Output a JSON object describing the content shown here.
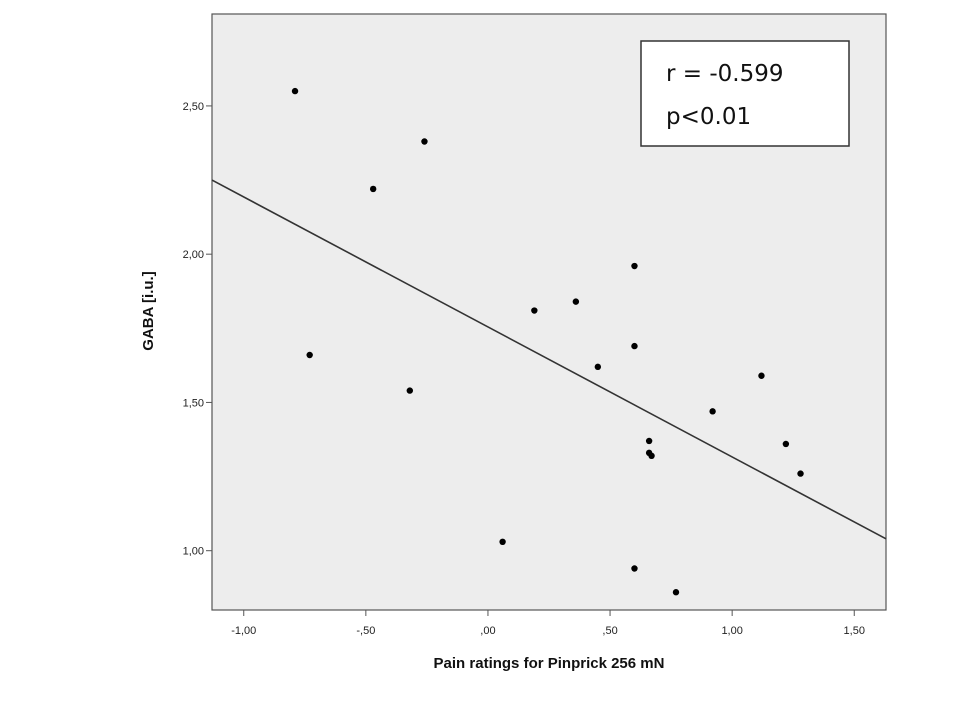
{
  "chart_data": {
    "type": "scatter",
    "title": "",
    "xlabel": "Pain ratings for Pinprick 256 mN",
    "ylabel": "GABA [i.u.]",
    "xlim": [
      -1.13,
      1.63
    ],
    "ylim": [
      0.8,
      2.81
    ],
    "xticks": [
      -1.0,
      -0.5,
      0.0,
      0.5,
      1.0,
      1.5
    ],
    "xtick_labels": [
      "-1,00",
      "-,50",
      ",00",
      ",50",
      "1,00",
      "1,50"
    ],
    "yticks": [
      1.0,
      1.5,
      2.0,
      2.5
    ],
    "ytick_labels": [
      "1,00",
      "1,50",
      "2,00",
      "2,50"
    ],
    "grid": false,
    "background": "#ededed",
    "points": [
      {
        "x": -0.79,
        "y": 2.55
      },
      {
        "x": -0.73,
        "y": 1.66
      },
      {
        "x": -0.47,
        "y": 2.22
      },
      {
        "x": -0.32,
        "y": 1.54
      },
      {
        "x": -0.26,
        "y": 2.38
      },
      {
        "x": 0.06,
        "y": 1.03
      },
      {
        "x": 0.19,
        "y": 1.81
      },
      {
        "x": 0.36,
        "y": 1.84
      },
      {
        "x": 0.45,
        "y": 1.62
      },
      {
        "x": 0.6,
        "y": 1.96
      },
      {
        "x": 0.6,
        "y": 1.69
      },
      {
        "x": 0.6,
        "y": 0.94
      },
      {
        "x": 0.66,
        "y": 1.37
      },
      {
        "x": 0.66,
        "y": 1.33
      },
      {
        "x": 0.67,
        "y": 1.32
      },
      {
        "x": 0.77,
        "y": 0.86
      },
      {
        "x": 0.92,
        "y": 1.47
      },
      {
        "x": 1.12,
        "y": 1.59
      },
      {
        "x": 1.22,
        "y": 1.36
      },
      {
        "x": 1.28,
        "y": 1.26
      }
    ],
    "fit_line": {
      "x": [
        -1.13,
        1.63
      ],
      "y": [
        2.25,
        1.04
      ]
    },
    "annotations": [
      {
        "label": "r = -0.599"
      },
      {
        "label": "p<0.01"
      }
    ]
  }
}
